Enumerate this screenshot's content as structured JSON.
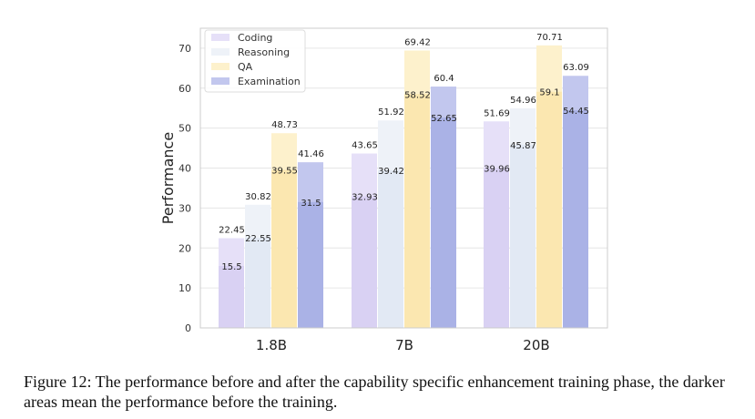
{
  "chart_data": {
    "type": "bar",
    "categories": [
      "1.8B",
      "7B",
      "20B"
    ],
    "ylabel": "Performance",
    "ylim": [
      0,
      75
    ],
    "yticks": [
      0,
      10,
      20,
      30,
      40,
      50,
      60,
      70
    ],
    "grid": true,
    "legend_position": "top-left",
    "series": [
      {
        "name": "Coding",
        "color": "#e6e0f8",
        "dark_color": "#d9d1f3",
        "after": [
          22.45,
          43.65,
          51.69
        ],
        "before": [
          15.5,
          32.93,
          39.96
        ]
      },
      {
        "name": "Reasoning",
        "color": "#eef2f8",
        "dark_color": "#e2e9f4",
        "after": [
          30.82,
          51.92,
          54.96
        ],
        "before": [
          22.55,
          39.42,
          45.87
        ]
      },
      {
        "name": "QA",
        "color": "#fdf1cc",
        "dark_color": "#fbe7b0",
        "after": [
          48.73,
          69.42,
          70.71
        ],
        "before": [
          39.55,
          58.52,
          59.1
        ]
      },
      {
        "name": "Examination",
        "color": "#c2c7ee",
        "dark_color": "#aab2e6",
        "after": [
          41.46,
          60.4,
          63.09
        ],
        "before": [
          31.5,
          52.65,
          54.45
        ]
      }
    ]
  },
  "caption": "Figure 12: The performance before and after the capability specific enhancement training phase, the darker areas mean the performance before the training."
}
